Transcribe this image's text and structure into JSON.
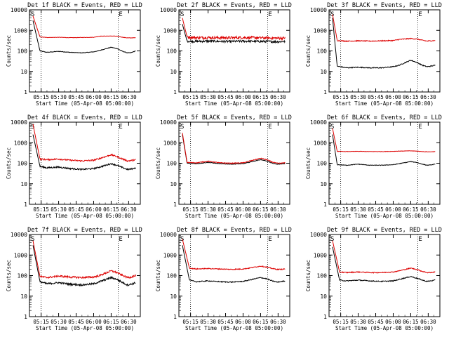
{
  "figure": {
    "xlabel": "Start Time (05-Apr-08 05:00:00)",
    "ylabel": "Counts/sec",
    "xticks": [
      "05:15",
      "05:30",
      "05:45",
      "06:00",
      "06:15",
      "06:30"
    ],
    "yticks": [
      "1",
      "10",
      "100",
      "1000",
      "10000"
    ],
    "colors": {
      "events": "#000000",
      "lld": "#dd0000"
    }
  },
  "chart_data": [
    {
      "type": "line",
      "title": "Det 1f BLACK = Events, RED = LLD",
      "legend_marks": [
        "S",
        "E"
      ],
      "xlabel": "Start Time (05-Apr-08 05:00:00)",
      "ylabel": "Counts/sec",
      "ylog": true,
      "ylim": [
        1,
        10000
      ],
      "x_minutes_from_05_00": [
        8,
        14,
        20,
        30,
        40,
        50,
        60,
        65,
        75,
        80,
        85,
        89,
        92,
        96
      ],
      "series": [
        {
          "name": "BLACK = Events",
          "values": [
            3000,
            100,
            85,
            95,
            85,
            80,
            90,
            105,
            150,
            130,
            95,
            80,
            82,
            100
          ],
          "noise": 0.03
        },
        {
          "name": "RED = LLD",
          "values": [
            5000,
            480,
            450,
            460,
            440,
            450,
            460,
            520,
            530,
            520,
            460,
            430,
            430,
            440
          ],
          "noise": 0.02
        }
      ],
      "vlines_minutes": [
        15,
        81
      ]
    },
    {
      "type": "line",
      "title": "Det 2f BLACK = Events, RED = LLD",
      "legend_marks": [
        "S",
        "E"
      ],
      "xlabel": "Start Time (05-Apr-08 05:00:00)",
      "ylabel": "Counts/sec",
      "ylog": true,
      "ylim": [
        1,
        10000
      ],
      "x_minutes_from_05_00": [
        8,
        12,
        20,
        30,
        40,
        50,
        60,
        70,
        80,
        90,
        96
      ],
      "series": [
        {
          "name": "BLACK = Events",
          "values": [
            2000,
            300,
            290,
            300,
            290,
            290,
            300,
            290,
            290,
            280,
            290
          ],
          "noise": 0.12
        },
        {
          "name": "RED = LLD",
          "values": [
            4000,
            480,
            440,
            450,
            440,
            440,
            450,
            440,
            430,
            420,
            430
          ],
          "noise": 0.15
        }
      ],
      "vlines_minutes": [
        15,
        81
      ]
    },
    {
      "type": "line",
      "title": "Det 3f BLACK = Events, RED = LLD",
      "legend_marks": [
        "S",
        "E"
      ],
      "xlabel": "Start Time (05-Apr-08 05:00:00)",
      "ylabel": "Counts/sec",
      "ylog": true,
      "ylim": [
        1,
        10000
      ],
      "x_minutes_from_05_00": [
        8,
        12,
        20,
        30,
        40,
        50,
        60,
        65,
        75,
        80,
        85,
        89,
        92,
        96
      ],
      "series": [
        {
          "name": "BLACK = Events",
          "values": [
            4000,
            18,
            15,
            16,
            15,
            15,
            17,
            20,
            35,
            28,
            20,
            17,
            18,
            20
          ],
          "noise": 0.05
        },
        {
          "name": "RED = LLD",
          "values": [
            6000,
            320,
            300,
            310,
            300,
            310,
            320,
            360,
            400,
            380,
            330,
            300,
            310,
            320
          ],
          "noise": 0.05
        }
      ],
      "vlines_minutes": [
        15,
        81
      ]
    },
    {
      "type": "line",
      "title": "Det 4f BLACK = Events, RED = LLD",
      "legend_marks": [
        "S",
        "E"
      ],
      "xlabel": "Start Time (05-Apr-08 05:00:00)",
      "ylabel": "Counts/sec",
      "ylog": true,
      "ylim": [
        1,
        10000
      ],
      "x_minutes_from_05_00": [
        8,
        14,
        20,
        30,
        40,
        50,
        60,
        65,
        75,
        80,
        85,
        89,
        92,
        96
      ],
      "series": [
        {
          "name": "BLACK = Events",
          "values": [
            2500,
            70,
            60,
            65,
            55,
            50,
            55,
            65,
            95,
            80,
            60,
            50,
            52,
            60
          ],
          "noise": 0.08
        },
        {
          "name": "RED = LLD",
          "values": [
            8000,
            160,
            150,
            160,
            140,
            130,
            140,
            170,
            260,
            210,
            160,
            130,
            135,
            150
          ],
          "noise": 0.08
        }
      ],
      "vlines_minutes": [
        15,
        81
      ]
    },
    {
      "type": "line",
      "title": "Det 5f BLACK = Events, RED = LLD",
      "legend_marks": [
        "S",
        "E"
      ],
      "xlabel": "Start Time (05-Apr-08 05:00:00)",
      "ylabel": "Counts/sec",
      "ylog": true,
      "ylim": [
        1,
        10000
      ],
      "x_minutes_from_05_00": [
        8,
        12,
        20,
        30,
        40,
        50,
        60,
        65,
        75,
        80,
        85,
        89,
        92,
        96
      ],
      "series": [
        {
          "name": "BLACK = Events",
          "values": [
            2500,
            100,
            95,
            110,
            95,
            90,
            95,
            110,
            150,
            130,
            100,
            90,
            92,
            95
          ],
          "noise": 0.03
        },
        {
          "name": "RED = LLD",
          "values": [
            3000,
            110,
            105,
            125,
            105,
            100,
            105,
            125,
            175,
            150,
            115,
            100,
            100,
            105
          ],
          "noise": 0.04
        }
      ],
      "vlines_minutes": [
        15,
        81
      ]
    },
    {
      "type": "line",
      "title": "Det 6f BLACK = Events, RED = LLD",
      "legend_marks": [
        "S",
        "E"
      ],
      "xlabel": "Start Time (05-Apr-08 05:00:00)",
      "ylabel": "Counts/sec",
      "ylog": true,
      "ylim": [
        1,
        10000
      ],
      "x_minutes_from_05_00": [
        8,
        12,
        20,
        30,
        40,
        50,
        60,
        65,
        75,
        80,
        85,
        89,
        92,
        96
      ],
      "series": [
        {
          "name": "BLACK = Events",
          "values": [
            2500,
            85,
            80,
            90,
            80,
            80,
            85,
            95,
            120,
            110,
            90,
            80,
            82,
            90
          ],
          "noise": 0.03
        },
        {
          "name": "RED = LLD",
          "values": [
            5000,
            380,
            370,
            380,
            370,
            370,
            380,
            390,
            400,
            390,
            370,
            360,
            360,
            370
          ],
          "noise": 0.02
        }
      ],
      "vlines_minutes": [
        15,
        81
      ]
    },
    {
      "type": "line",
      "title": "Det 7f BLACK = Events, RED = LLD",
      "legend_marks": [
        "S",
        "E"
      ],
      "xlabel": "Start Time (05-Apr-08 05:00:00)",
      "ylabel": "Counts/sec",
      "ylog": true,
      "ylim": [
        1,
        10000
      ],
      "x_minutes_from_05_00": [
        8,
        14,
        20,
        30,
        40,
        50,
        60,
        65,
        75,
        80,
        85,
        89,
        92,
        96
      ],
      "series": [
        {
          "name": "BLACK = Events",
          "values": [
            3000,
            50,
            40,
            45,
            38,
            35,
            40,
            50,
            80,
            65,
            45,
            35,
            38,
            45
          ],
          "noise": 0.1
        },
        {
          "name": "RED = LLD",
          "values": [
            5000,
            90,
            80,
            95,
            85,
            80,
            85,
            100,
            170,
            140,
            100,
            80,
            85,
            100
          ],
          "noise": 0.1
        }
      ],
      "vlines_minutes": [
        15,
        81
      ]
    },
    {
      "type": "line",
      "title": "Det 8f BLACK = Events, RED = LLD",
      "legend_marks": [
        "S",
        "E"
      ],
      "xlabel": "Start Time (05-Apr-08 05:00:00)",
      "ylabel": "Counts/sec",
      "ylog": true,
      "ylim": [
        1,
        10000
      ],
      "x_minutes_from_05_00": [
        8,
        14,
        20,
        30,
        40,
        50,
        60,
        65,
        75,
        80,
        85,
        89,
        92,
        96
      ],
      "series": [
        {
          "name": "BLACK = Events",
          "values": [
            3000,
            60,
            50,
            55,
            50,
            48,
            52,
            60,
            80,
            70,
            55,
            48,
            50,
            55
          ],
          "noise": 0.05
        },
        {
          "name": "RED = LLD",
          "values": [
            6000,
            230,
            210,
            220,
            210,
            200,
            210,
            230,
            290,
            260,
            220,
            200,
            200,
            210
          ],
          "noise": 0.05
        }
      ],
      "vlines_minutes": [
        15,
        81
      ]
    },
    {
      "type": "line",
      "title": "Det 9f BLACK = Events, RED = LLD",
      "legend_marks": [
        "S",
        "E"
      ],
      "xlabel": "Start Time (05-Apr-08 05:00:00)",
      "ylabel": "Counts/sec",
      "ylog": true,
      "ylim": [
        1,
        10000
      ],
      "x_minutes_from_05_00": [
        8,
        14,
        20,
        30,
        40,
        50,
        60,
        65,
        75,
        80,
        85,
        89,
        92,
        96
      ],
      "series": [
        {
          "name": "BLACK = Events",
          "values": [
            2500,
            60,
            55,
            60,
            55,
            52,
            55,
            65,
            90,
            75,
            60,
            52,
            55,
            60
          ],
          "noise": 0.05
        },
        {
          "name": "RED = LLD",
          "values": [
            5000,
            150,
            140,
            150,
            140,
            140,
            150,
            170,
            230,
            200,
            160,
            140,
            140,
            150
          ],
          "noise": 0.05
        }
      ],
      "vlines_minutes": [
        15,
        81
      ]
    }
  ]
}
